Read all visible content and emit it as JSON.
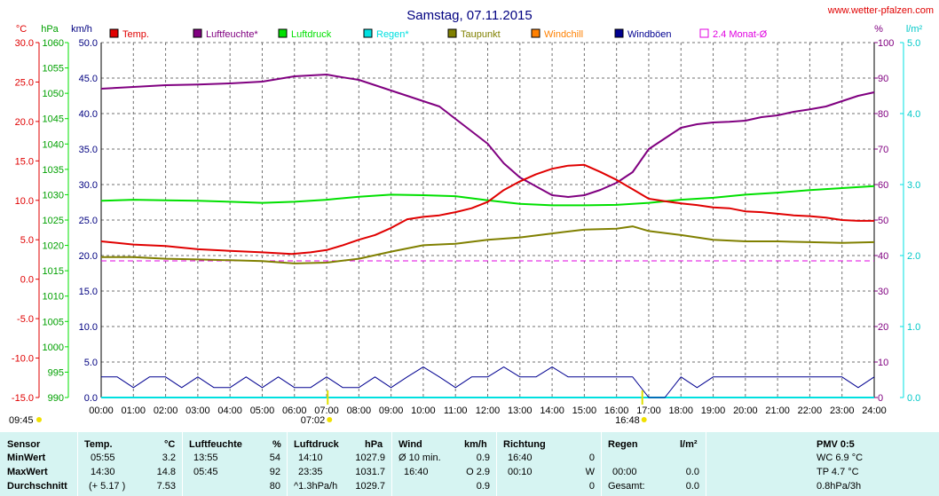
{
  "page": {
    "title": "Samstag, 07.11.2015",
    "source": "www.wetter-pfalzen.com"
  },
  "colors": {
    "temp": "#e00000",
    "humidity": "#800080",
    "pressure": "#00e000",
    "rain": "#00e0e0",
    "dewpoint": "#808000",
    "windchill": "#ff8000",
    "gust": "#000090",
    "avg": "#e000e0",
    "panel": "#d6f4f2"
  },
  "chart_data": {
    "type": "line",
    "title": "Samstag, 07.11.2015",
    "grid": true,
    "legend_placement": "top",
    "axes": {
      "temp": {
        "unit": "°C",
        "range": [
          -15,
          30
        ],
        "ticks": [
          "30.0",
          "25.0",
          "20.0",
          "15.0",
          "10.0",
          "5.0",
          "0.0",
          "-5.0",
          "-10.0",
          "-15.0"
        ]
      },
      "pressure": {
        "unit": "hPa",
        "range": [
          990,
          1060
        ],
        "ticks": [
          "1060",
          "1055",
          "1050",
          "1045",
          "1040",
          "1035",
          "1030",
          "1025",
          "1020",
          "1015",
          "1010",
          "1005",
          "1000",
          "995",
          "990"
        ]
      },
      "wind": {
        "unit": "km/h",
        "range": [
          0,
          50
        ],
        "ticks": [
          "50.0",
          "45.0",
          "40.0",
          "35.0",
          "30.0",
          "25.0",
          "20.0",
          "15.0",
          "10.0",
          "5.0",
          "0.0"
        ]
      },
      "humidity": {
        "unit": "%",
        "range": [
          0,
          100
        ],
        "ticks": [
          "100",
          "90",
          "80",
          "70",
          "60",
          "50",
          "40",
          "30",
          "20",
          "10",
          "0"
        ]
      },
      "rain": {
        "unit": "l/m²",
        "range": [
          0,
          5
        ],
        "ticks": [
          "5.0",
          "4.0",
          "3.0",
          "2.0",
          "1.0",
          "0.0"
        ]
      },
      "x_ticks": [
        "00:00",
        "01:00",
        "02:00",
        "03:00",
        "04:00",
        "05:00",
        "06:00",
        "07:00",
        "08:00",
        "09:00",
        "10:00",
        "11:00",
        "12:00",
        "13:00",
        "14:00",
        "15:00",
        "16:00",
        "17:00",
        "18:00",
        "19:00",
        "20:00",
        "21:00",
        "22:00",
        "23:00",
        "24:00"
      ]
    },
    "legend": [
      {
        "name": "Temp.",
        "color": "#e00000",
        "box": "filled"
      },
      {
        "name": "Luftfeuchte*",
        "color": "#800080",
        "box": "filled"
      },
      {
        "name": "Luftdruck",
        "color": "#00e000",
        "box": "filled"
      },
      {
        "name": "Regen*",
        "color": "#00e0e0",
        "box": "filled"
      },
      {
        "name": "Taupunkt",
        "color": "#808000",
        "box": "filled"
      },
      {
        "name": "Windchill",
        "color": "#ff8000",
        "box": "filled"
      },
      {
        "name": "Windböen",
        "color": "#000090",
        "box": "filled"
      },
      {
        "name": "2.4 Monat-Ø",
        "color": "#e000e0",
        "box": "outline"
      }
    ],
    "series": [
      {
        "name": "Temp.",
        "axis": "temp",
        "x": [
          0,
          1,
          2,
          3,
          4,
          5,
          5.92,
          6.5,
          7,
          7.5,
          8,
          8.5,
          9,
          9.5,
          10,
          10.5,
          11,
          11.5,
          12,
          12.5,
          13,
          13.5,
          14,
          14.5,
          15,
          15.5,
          16,
          16.5,
          17,
          17.5,
          18,
          18.5,
          19,
          19.5,
          20,
          20.5,
          21,
          21.5,
          22,
          22.5,
          23,
          23.5,
          24
        ],
        "y": [
          4.8,
          4.4,
          4.2,
          3.8,
          3.6,
          3.4,
          3.2,
          3.4,
          3.7,
          4.3,
          5.0,
          5.6,
          6.5,
          7.6,
          7.9,
          8.1,
          8.5,
          9.0,
          9.8,
          11.3,
          12.4,
          13.3,
          14.0,
          14.4,
          14.5,
          13.6,
          12.6,
          11.4,
          10.2,
          9.9,
          9.6,
          9.4,
          9.1,
          9.0,
          8.6,
          8.5,
          8.3,
          8.1,
          8.0,
          7.8,
          7.5,
          7.4,
          7.4
        ]
      },
      {
        "name": "Luftfeuchte*",
        "axis": "humidity",
        "x": [
          0,
          1,
          2,
          3,
          4,
          5,
          6,
          7,
          7.5,
          8,
          8.5,
          9,
          9.5,
          10,
          10.5,
          11,
          11.5,
          12,
          12.5,
          13,
          13.5,
          14,
          14.5,
          15,
          15.5,
          16,
          16.5,
          17,
          17.5,
          18,
          18.5,
          19,
          19.5,
          20,
          20.5,
          21,
          21.5,
          22,
          22.5,
          23,
          23.5,
          24
        ],
        "y": [
          87.0,
          87.5,
          88.0,
          88.2,
          88.5,
          89.0,
          90.5,
          91.0,
          90.2,
          89.5,
          88.0,
          86.5,
          85.0,
          83.5,
          82.0,
          78.5,
          75.0,
          71.5,
          66.0,
          62.0,
          59.5,
          57.0,
          56.5,
          57.0,
          58.5,
          60.5,
          63.5,
          70.0,
          73.0,
          76.0,
          77.0,
          77.5,
          77.7,
          78.0,
          79.0,
          79.5,
          80.5,
          81.2,
          82.0,
          83.5,
          85.0,
          86.0
        ]
      },
      {
        "name": "Luftdruck",
        "axis": "pressure",
        "x": [
          0,
          1,
          2,
          3,
          4,
          5,
          6,
          7,
          8,
          9,
          10,
          11,
          12,
          13,
          14,
          15,
          16,
          17,
          18,
          19,
          20,
          21,
          22,
          23,
          24
        ],
        "y": [
          1028.8,
          1029.0,
          1028.9,
          1028.8,
          1028.6,
          1028.4,
          1028.6,
          1029.0,
          1029.6,
          1030.0,
          1029.9,
          1029.7,
          1028.9,
          1028.2,
          1027.9,
          1027.9,
          1028.0,
          1028.4,
          1029.0,
          1029.4,
          1030.0,
          1030.4,
          1030.9,
          1031.3,
          1031.7
        ]
      },
      {
        "name": "Taupunkt",
        "axis": "temp",
        "x": [
          0,
          1,
          2,
          3,
          4,
          5,
          6,
          7,
          8,
          9,
          10,
          11,
          12,
          13,
          14,
          15,
          16,
          16.5,
          17,
          18,
          19,
          20,
          21,
          22,
          23,
          24
        ],
        "y": [
          2.8,
          2.8,
          2.6,
          2.5,
          2.4,
          2.3,
          2.0,
          2.1,
          2.6,
          3.5,
          4.3,
          4.5,
          5.0,
          5.3,
          5.8,
          6.3,
          6.4,
          6.7,
          6.1,
          5.6,
          5.0,
          4.8,
          4.8,
          4.7,
          4.6,
          4.7
        ]
      },
      {
        "name": "Windböen",
        "axis": "wind",
        "x": [
          0,
          0.5,
          1,
          1.5,
          2,
          2.5,
          3,
          3.5,
          4,
          4.5,
          5,
          5.5,
          6,
          6.5,
          7,
          7.5,
          8,
          8.5,
          9,
          9.5,
          10,
          10.5,
          11,
          11.5,
          12,
          12.5,
          13,
          13.5,
          14,
          14.5,
          15,
          15.5,
          16,
          16.5,
          17,
          17.5,
          18,
          18.5,
          19,
          19.5,
          20,
          20.5,
          21,
          21.5,
          22,
          22.5,
          23,
          23.5,
          24
        ],
        "y": [
          2.9,
          2.9,
          1.4,
          2.9,
          2.9,
          1.4,
          2.9,
          1.4,
          1.4,
          2.9,
          1.4,
          2.9,
          1.4,
          1.4,
          2.9,
          1.4,
          1.4,
          2.9,
          1.4,
          2.9,
          4.3,
          2.9,
          1.4,
          2.9,
          2.9,
          4.3,
          2.9,
          2.9,
          4.3,
          2.9,
          2.9,
          2.9,
          2.9,
          2.9,
          0,
          0,
          2.9,
          1.4,
          2.9,
          2.9,
          2.9,
          2.9,
          2.9,
          2.9,
          2.9,
          2.9,
          2.9,
          1.4,
          2.9
        ]
      },
      {
        "name": "Regen*",
        "axis": "rain",
        "x": [
          0,
          24
        ],
        "y": [
          0,
          0
        ]
      },
      {
        "name": "2.4 Monat-Ø",
        "axis": "humidity",
        "x": [
          0,
          24
        ],
        "y": [
          38.5,
          38.5
        ],
        "dashed": true
      }
    ],
    "markers": {
      "min_time": "09:45",
      "sun_ticks": [
        "07:02",
        "16:48"
      ]
    }
  },
  "stats": {
    "cols": {
      "sensor": "Sensor",
      "temp": "Temp.",
      "temp_unit": "°C",
      "hum": "Luftfeuchte",
      "hum_unit": "%",
      "press": "Luftdruck",
      "press_unit": "hPa",
      "wind": "Wind",
      "wind_unit": "km/h",
      "dir": "Richtung",
      "rain": "Regen",
      "rain_unit": "l/m²",
      "pmv": "PMV 0:5"
    },
    "rows": [
      {
        "label": "MinWert",
        "temp_time": "05:55",
        "temp_val": "3.2",
        "hum_time": "13:55",
        "hum_val": "54",
        "press_time": "14:10",
        "press_val": "1027.9",
        "wind_time": "Ø 10 min.",
        "wind_val": "0.9",
        "dir_time": "16:40",
        "dir_val": "0",
        "rain_time": "",
        "rain_val": "",
        "pmv": "WC 6.9 °C"
      },
      {
        "label": "MaxWert",
        "temp_time": "14:30",
        "temp_val": "14.8",
        "hum_time": "05:45",
        "hum_val": "92",
        "press_time": "23:35",
        "press_val": "1031.7",
        "wind_time": "16:40",
        "wind_val": "O 2.9",
        "dir_time": "00:10",
        "dir_val": "W",
        "rain_time": "00:00",
        "rain_val": "0.0",
        "pmv": "TP 4.7 °C"
      },
      {
        "label": "Durchschnitt",
        "temp_time": "(+ 5.17 )",
        "temp_val": "7.53",
        "hum_time": "",
        "hum_val": "80",
        "press_time": "^1.3hPa/h",
        "press_val": "1029.7",
        "wind_time": "",
        "wind_val": "0.9",
        "dir_time": "",
        "dir_val": "0",
        "rain_time": "Gesamt:",
        "rain_val": "0.0",
        "pmv": "0.8hPa/3h"
      }
    ]
  }
}
